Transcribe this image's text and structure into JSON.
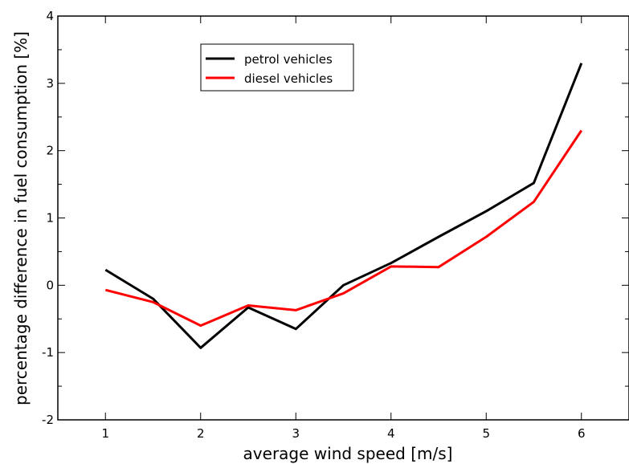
{
  "chart_data": {
    "type": "line",
    "xlabel": "average wind speed [m/s]",
    "ylabel": "percentage difference in fuel consumption [%]",
    "xlim": [
      0.5,
      6.5
    ],
    "ylim": [
      -2,
      4
    ],
    "xticks": [
      1,
      2,
      3,
      4,
      5,
      6
    ],
    "yticks": [
      -2,
      -1,
      0,
      1,
      2,
      3,
      4
    ],
    "x": [
      1,
      1.5,
      2,
      2.5,
      3,
      3.5,
      4,
      4.5,
      5,
      5.5,
      6
    ],
    "series": [
      {
        "name": "petrol vehicles",
        "color": "#000000",
        "values": [
          0.23,
          -0.2,
          -0.93,
          -0.33,
          -0.65,
          0.0,
          0.33,
          0.72,
          1.1,
          1.52,
          3.3
        ]
      },
      {
        "name": "diesel vehicles",
        "color": "#ff0000",
        "values": [
          -0.07,
          -0.25,
          -0.6,
          -0.3,
          -0.37,
          -0.12,
          0.28,
          0.27,
          0.72,
          1.24,
          2.3
        ]
      }
    ],
    "legend_position": "top-left",
    "grid": false
  }
}
